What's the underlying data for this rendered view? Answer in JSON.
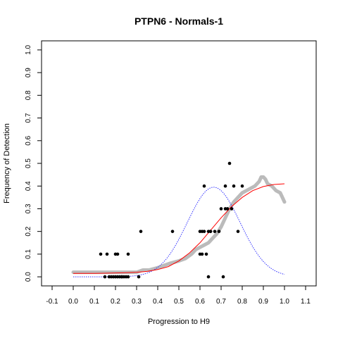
{
  "chart_data": {
    "type": "scatter",
    "title": "PTPN6 - Normals-1",
    "xlabel": "Progression to H9",
    "ylabel": "Frequency of Detection",
    "xlim": [
      -0.15,
      1.15
    ],
    "ylim": [
      -0.04,
      1.04
    ],
    "x_ticks": [
      "-0.1",
      "0.0",
      "0.1",
      "0.2",
      "0.3",
      "0.4",
      "0.5",
      "0.6",
      "0.7",
      "0.8",
      "0.9",
      "1.0",
      "1.1"
    ],
    "y_ticks": [
      "0.0",
      "0.1",
      "0.2",
      "0.3",
      "0.4",
      "0.5",
      "0.6",
      "0.7",
      "0.8",
      "0.9",
      "1.0"
    ],
    "grid": false,
    "legend": "none",
    "colors": {
      "observed": "#000000",
      "smoothed": "#bbbbbb",
      "fit": "#ff0000",
      "density": "#3333ff"
    },
    "series": [
      {
        "kind": "points",
        "x": [
          0.13,
          0.15,
          0.16,
          0.17,
          0.18,
          0.19,
          0.2,
          0.2,
          0.21,
          0.21,
          0.22,
          0.23,
          0.23,
          0.24,
          0.25,
          0.26,
          0.26,
          0.31,
          0.32,
          0.47,
          0.6,
          0.6,
          0.61,
          0.61,
          0.62,
          0.62,
          0.63,
          0.64,
          0.64,
          0.65,
          0.65,
          0.67,
          0.69,
          0.7,
          0.71,
          0.72,
          0.72,
          0.73,
          0.74,
          0.75,
          0.76,
          0.78,
          0.8
        ],
        "y": [
          0.1,
          0.0,
          0.1,
          0.0,
          0.0,
          0.0,
          0.1,
          0.0,
          0.1,
          0.0,
          0.0,
          0.0,
          0.0,
          0.0,
          0.0,
          0.1,
          0.0,
          0.0,
          0.2,
          0.2,
          0.1,
          0.2,
          0.1,
          0.2,
          0.2,
          0.4,
          0.1,
          0.0,
          0.2,
          0.2,
          0.2,
          0.2,
          0.2,
          0.3,
          0.0,
          0.3,
          0.4,
          0.3,
          0.5,
          0.3,
          0.4,
          0.2,
          0.4
        ]
      },
      {
        "kind": "smoothed",
        "x": [
          0.0,
          0.05,
          0.1,
          0.15,
          0.2,
          0.25,
          0.3,
          0.33,
          0.36,
          0.4,
          0.43,
          0.46,
          0.5,
          0.53,
          0.56,
          0.58,
          0.6,
          0.62,
          0.64,
          0.66,
          0.68,
          0.7,
          0.72,
          0.74,
          0.76,
          0.78,
          0.8,
          0.82,
          0.84,
          0.86,
          0.88,
          0.89,
          0.9,
          0.91,
          0.92,
          0.94,
          0.96,
          0.98,
          0.99,
          1.0
        ],
        "y": [
          0.02,
          0.02,
          0.02,
          0.02,
          0.02,
          0.02,
          0.02,
          0.03,
          0.03,
          0.04,
          0.05,
          0.06,
          0.07,
          0.08,
          0.1,
          0.12,
          0.13,
          0.14,
          0.15,
          0.17,
          0.19,
          0.22,
          0.26,
          0.3,
          0.33,
          0.35,
          0.37,
          0.38,
          0.39,
          0.4,
          0.42,
          0.44,
          0.44,
          0.43,
          0.41,
          0.4,
          0.38,
          0.37,
          0.35,
          0.33
        ]
      },
      {
        "kind": "fit",
        "x": [
          0.0,
          0.05,
          0.1,
          0.15,
          0.2,
          0.25,
          0.3,
          0.35,
          0.4,
          0.45,
          0.5,
          0.55,
          0.6,
          0.65,
          0.7,
          0.75,
          0.8,
          0.85,
          0.9,
          0.95,
          1.0
        ],
        "y": [
          0.015,
          0.015,
          0.015,
          0.016,
          0.017,
          0.018,
          0.02,
          0.024,
          0.032,
          0.045,
          0.07,
          0.105,
          0.15,
          0.205,
          0.26,
          0.31,
          0.35,
          0.38,
          0.398,
          0.407,
          0.41
        ]
      },
      {
        "kind": "density",
        "mean": 0.665,
        "sd": 0.125,
        "peak": 0.395,
        "x_range": [
          0.0,
          1.0
        ]
      }
    ]
  }
}
